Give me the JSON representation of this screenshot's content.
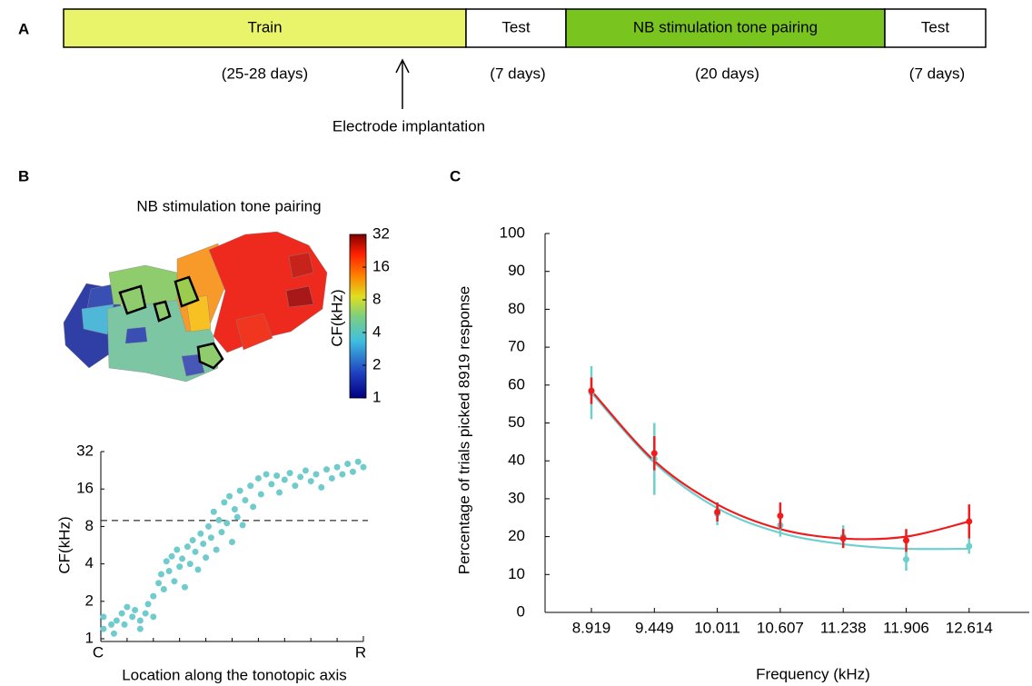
{
  "panel_labels": [
    "A",
    "B",
    "C"
  ],
  "timeline": {
    "segments": [
      {
        "label": "Train",
        "duration": "(25-28 days)",
        "color": "#e9f46a"
      },
      {
        "label": "Test",
        "duration": "(7 days)",
        "color": "#ffffff"
      },
      {
        "label": "NB stimulation tone pairing",
        "duration": "(20 days)",
        "color": "#7ac41f"
      },
      {
        "label": "Test",
        "duration": "(7 days)",
        "color": "#ffffff"
      }
    ],
    "annotation": "Electrode implantation"
  },
  "map": {
    "title": "NB stimulation tone pairing",
    "colorbar": {
      "label": "CF(kHz)",
      "ticks": [
        1,
        2,
        4,
        8,
        16,
        32
      ],
      "lim": [
        1,
        32
      ],
      "log_base": 2
    }
  },
  "chart_data": [
    {
      "type": "scatter",
      "xlabel": "Location along the tonotopic axis",
      "ylabel": "CF(kHz)",
      "color": "#70cccc",
      "xlim": [
        0,
        1
      ],
      "ylim": [
        1,
        32
      ],
      "log_base": 2,
      "xticks": [
        {
          "value": 0,
          "label": "C"
        },
        {
          "value": 1,
          "label": "R"
        }
      ],
      "yticks": [
        1,
        2,
        4,
        8,
        16,
        32
      ],
      "hline": 8.919,
      "x": [
        0.01,
        0.01,
        0.04,
        0.05,
        0.06,
        0.08,
        0.09,
        0.1,
        0.12,
        0.13,
        0.15,
        0.15,
        0.17,
        0.18,
        0.2,
        0.2,
        0.22,
        0.23,
        0.24,
        0.25,
        0.26,
        0.27,
        0.28,
        0.29,
        0.3,
        0.31,
        0.32,
        0.33,
        0.34,
        0.35,
        0.36,
        0.37,
        0.38,
        0.39,
        0.4,
        0.41,
        0.42,
        0.43,
        0.44,
        0.45,
        0.46,
        0.47,
        0.48,
        0.49,
        0.5,
        0.51,
        0.52,
        0.53,
        0.54,
        0.55,
        0.57,
        0.58,
        0.6,
        0.61,
        0.63,
        0.65,
        0.67,
        0.68,
        0.7,
        0.72,
        0.74,
        0.76,
        0.78,
        0.8,
        0.82,
        0.84,
        0.86,
        0.88,
        0.9,
        0.92,
        0.94,
        0.96,
        0.98,
        1.0
      ],
      "y": [
        1.2,
        1.5,
        1.3,
        1.1,
        1.4,
        1.6,
        1.3,
        1.8,
        1.5,
        1.7,
        1.4,
        1.2,
        1.6,
        1.9,
        2.2,
        1.5,
        2.8,
        3.3,
        2.5,
        4.2,
        3.5,
        4.6,
        2.9,
        5.2,
        3.8,
        4.4,
        2.6,
        5.5,
        4.0,
        6.2,
        5.0,
        3.6,
        7.0,
        5.8,
        4.5,
        8.0,
        6.5,
        10.5,
        5.2,
        9.0,
        7.2,
        12.5,
        8.5,
        14.0,
        6.0,
        11.0,
        9.5,
        15.5,
        8.2,
        13.0,
        17.0,
        11.5,
        19.5,
        14.5,
        21.0,
        17.5,
        20.5,
        15.0,
        19.0,
        21.5,
        17.0,
        20.0,
        22.5,
        18.5,
        21.0,
        16.5,
        23.0,
        19.5,
        24.0,
        21.0,
        25.5,
        22.0,
        26.5,
        24.0
      ]
    },
    {
      "type": "line",
      "xlabel": "Frequency (kHz)",
      "ylabel": "Percentage of trials picked 8919 response",
      "categories": [
        "8.919",
        "9.449",
        "10.011",
        "10.607",
        "11.238",
        "11.906",
        "12.614"
      ],
      "ylim": [
        0,
        100
      ],
      "yticks": [
        0,
        10,
        20,
        30,
        40,
        50,
        60,
        70,
        80,
        90,
        100
      ],
      "series": [
        {
          "color": "#6fcfcf",
          "values": [
            58,
            40.5,
            26,
            23,
            20,
            14,
            17.5
          ],
          "errors": [
            7,
            9.5,
            3,
            3,
            3,
            3,
            2
          ]
        },
        {
          "color": "#ee1c1c",
          "values": [
            58.5,
            42,
            26.5,
            25.5,
            19.5,
            19,
            24
          ],
          "errors": [
            3.5,
            4.5,
            2.5,
            3.5,
            2.5,
            3,
            4.5
          ]
        }
      ],
      "fit_curves": [
        {
          "color": "#6fcfcf",
          "values": [
            58,
            39.5,
            27.5,
            21,
            18,
            16.8,
            16.8
          ]
        },
        {
          "color": "#ee1c1c",
          "values": [
            58.5,
            40,
            28.5,
            22,
            19.5,
            20,
            24
          ]
        }
      ]
    }
  ]
}
